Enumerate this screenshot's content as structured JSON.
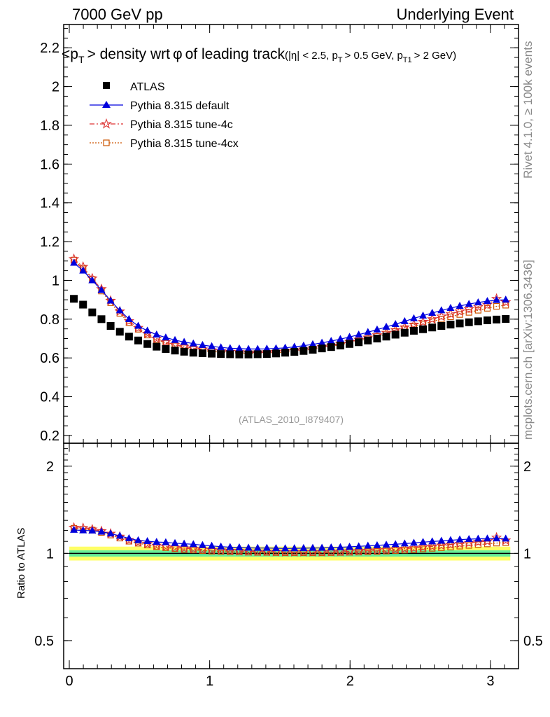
{
  "header": {
    "left": "7000 GeV pp",
    "right": "Underlying Event"
  },
  "side_text": {
    "rivet": "Rivet 4.1.0, ≥ 100k events",
    "mcplots": "mcplots.cern.ch [arXiv:1306.3436]"
  },
  "chart_data": {
    "type": "scatter",
    "title": "<pT> density wrt φ of leading track (|η| < 2.5, pT > 0.5 GeV, pT1 > 2 GeV)",
    "title_parts": {
      "main": "<p",
      "main_sub": "T",
      "main_rest": "> density wrt",
      "main_phi": "φ",
      "main_end": "of leading track",
      "cuts": "(|η| < 2.5, p",
      "cuts_sub1": "T",
      "cuts_mid": "> 0.5 GeV, p",
      "cuts_sub2": "T1",
      "cuts_end": "> 2 GeV)"
    },
    "analysis_label": "(ATLAS_2010_I879407)",
    "xlabel": "",
    "ylabel": "",
    "ratio_ylabel": "Ratio to ATLAS",
    "xlim": [
      -0.04,
      3.2
    ],
    "ylim": [
      0.16,
      2.32
    ],
    "ratio_ylim": [
      0.4,
      2.4
    ],
    "x_ticks": [
      0,
      1,
      2,
      3
    ],
    "y_ticks": [
      0.2,
      0.4,
      0.6,
      0.8,
      1,
      1.2,
      1.4,
      1.6,
      1.8,
      2,
      2.2
    ],
    "ratio_ticks": [
      0.5,
      1,
      2
    ],
    "x": [
      0.0327,
      0.0982,
      0.1636,
      0.2291,
      0.2945,
      0.36,
      0.4254,
      0.4909,
      0.5563,
      0.6218,
      0.6872,
      0.7527,
      0.8181,
      0.8836,
      0.949,
      1.0145,
      1.0799,
      1.1454,
      1.2108,
      1.2763,
      1.3417,
      1.4072,
      1.4726,
      1.5381,
      1.6035,
      1.669,
      1.7344,
      1.7999,
      1.8653,
      1.9308,
      1.9962,
      2.0617,
      2.1271,
      2.1926,
      2.258,
      2.3235,
      2.3889,
      2.4544,
      2.5198,
      2.5853,
      2.6507,
      2.7162,
      2.7816,
      2.8471,
      2.9125,
      2.978,
      3.0434,
      3.1089
    ],
    "series": [
      {
        "name": "ATLAS",
        "color": "#000000",
        "marker": "square",
        "values": [
          0.905,
          0.875,
          0.835,
          0.8,
          0.765,
          0.735,
          0.71,
          0.69,
          0.672,
          0.658,
          0.646,
          0.638,
          0.632,
          0.627,
          0.624,
          0.622,
          0.62,
          0.619,
          0.618,
          0.618,
          0.619,
          0.62,
          0.623,
          0.627,
          0.631,
          0.636,
          0.642,
          0.649,
          0.656,
          0.664,
          0.672,
          0.681,
          0.69,
          0.7,
          0.71,
          0.72,
          0.73,
          0.74,
          0.748,
          0.757,
          0.765,
          0.772,
          0.778,
          0.784,
          0.789,
          0.794,
          0.798,
          0.801
        ]
      },
      {
        "name": "Pythia 8.315 default",
        "color": "#0000dd",
        "marker": "triangle",
        "values": [
          1.09,
          1.05,
          1.0,
          0.95,
          0.895,
          0.845,
          0.8,
          0.765,
          0.74,
          0.72,
          0.705,
          0.692,
          0.682,
          0.674,
          0.666,
          0.66,
          0.654,
          0.65,
          0.648,
          0.646,
          0.646,
          0.647,
          0.649,
          0.652,
          0.657,
          0.663,
          0.67,
          0.678,
          0.687,
          0.697,
          0.708,
          0.72,
          0.733,
          0.746,
          0.76,
          0.774,
          0.789,
          0.804,
          0.818,
          0.832,
          0.845,
          0.857,
          0.868,
          0.878,
          0.886,
          0.893,
          0.898,
          0.9
        ]
      },
      {
        "name": "Pythia 8.315 tune-4c",
        "color": "#dd3333",
        "marker": "star",
        "values": [
          1.11,
          1.07,
          1.01,
          0.955,
          0.895,
          0.84,
          0.79,
          0.755,
          0.725,
          0.7,
          0.682,
          0.668,
          0.658,
          0.65,
          0.644,
          0.639,
          0.635,
          0.632,
          0.63,
          0.628,
          0.628,
          0.629,
          0.631,
          0.634,
          0.638,
          0.643,
          0.649,
          0.656,
          0.664,
          0.673,
          0.683,
          0.694,
          0.705,
          0.717,
          0.73,
          0.744,
          0.758,
          0.772,
          0.786,
          0.8,
          0.814,
          0.827,
          0.84,
          0.852,
          0.864,
          0.874,
          0.905,
          0.888
        ]
      },
      {
        "name": "Pythia 8.315 tune-4cx",
        "color": "#cc5500",
        "marker": "open-square",
        "values": [
          1.105,
          1.06,
          1.005,
          0.945,
          0.885,
          0.83,
          0.782,
          0.748,
          0.718,
          0.694,
          0.676,
          0.662,
          0.652,
          0.644,
          0.638,
          0.633,
          0.63,
          0.627,
          0.625,
          0.624,
          0.624,
          0.625,
          0.627,
          0.63,
          0.634,
          0.639,
          0.645,
          0.652,
          0.66,
          0.669,
          0.678,
          0.688,
          0.699,
          0.711,
          0.723,
          0.736,
          0.749,
          0.762,
          0.775,
          0.788,
          0.8,
          0.812,
          0.824,
          0.835,
          0.846,
          0.856,
          0.866,
          0.872
        ]
      }
    ],
    "ratio_bands": [
      {
        "name": "outer uncertainty",
        "color": "#ffff66",
        "range": [
          0.945,
          1.055
        ]
      },
      {
        "name": "inner uncertainty",
        "color": "#66ee99",
        "range": [
          0.975,
          1.025
        ]
      }
    ]
  }
}
